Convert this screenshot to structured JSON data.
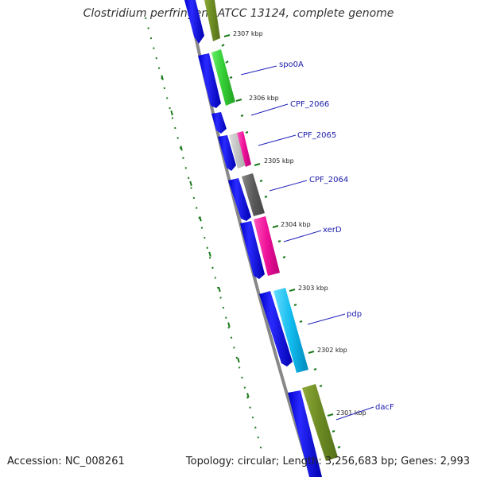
{
  "header": {
    "title": "Clostridium perfringens ATCC 13124, complete genome"
  },
  "footer": {
    "accession": "Accession: NC_008261",
    "summary": "Topology: circular; Length: 3,256,683 bp; Genes: 2,993"
  },
  "colors": {
    "backbone": "#7a7a7a",
    "reverse_cds": "#1010ee",
    "tick": "#1a7a1a",
    "label": "#1a1aaa"
  },
  "tick_labels": [
    "2307 kbp",
    "2306 kbp",
    "2305 kbp",
    "2304 kbp",
    "2303 kbp",
    "2302 kbp",
    "2301 kbp"
  ],
  "gene_labels": [
    "spo0A",
    "CPF_2066",
    "CPF_2065",
    "CPF_2064",
    "xerD",
    "pdp",
    "dacF"
  ]
}
